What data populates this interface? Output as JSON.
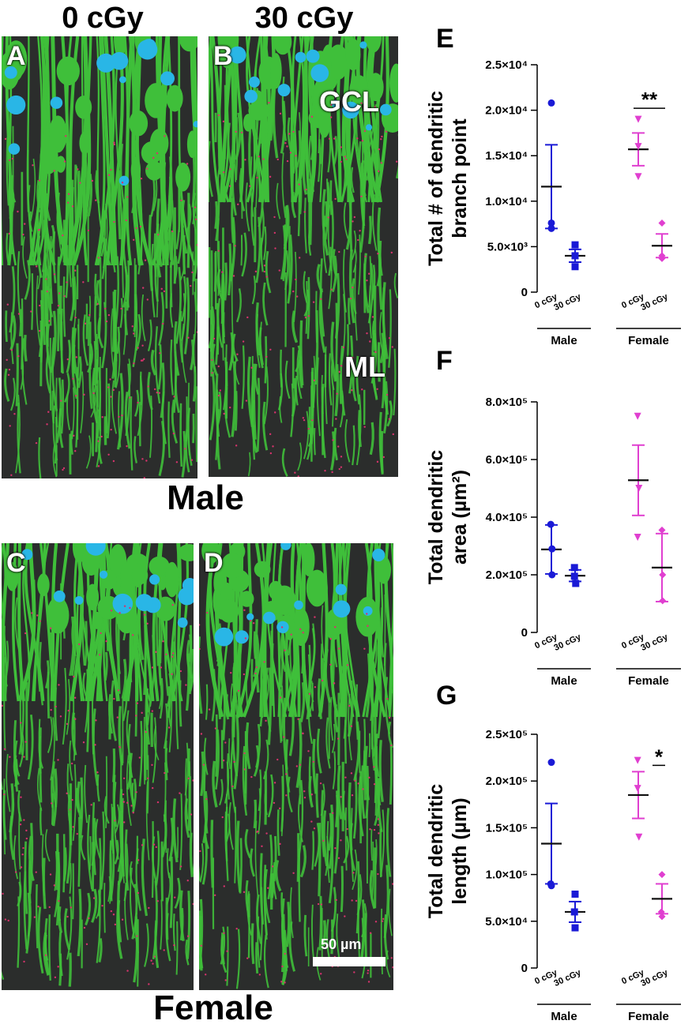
{
  "columns": [
    "0 cGy",
    "30 cGy"
  ],
  "rows": [
    "Male",
    "Female"
  ],
  "micrographs": [
    {
      "letter": "A",
      "labels": []
    },
    {
      "letter": "B",
      "labels": [
        "GCL",
        "ML"
      ]
    },
    {
      "letter": "C",
      "labels": []
    },
    {
      "letter": "D",
      "labels": []
    }
  ],
  "scale_bar": "50 µm",
  "colors": {
    "male": "#1a1ad6",
    "female": "#e03fd0",
    "dendrite": "#3fbf3a",
    "soma": "#29b6e6",
    "spine": "#d6336c",
    "background": "#2b2d2c"
  },
  "chart_data": [
    {
      "letter": "E",
      "type": "scatter",
      "ylabel": "Total # of dendritic branch point",
      "ylim": [
        0,
        25000
      ],
      "yticks": [
        0,
        5000,
        10000,
        15000,
        20000,
        25000
      ],
      "ytick_labels": [
        "0",
        "5.0×10³",
        "1.0×10⁴",
        "1.5×10⁴",
        "2.0×10⁴",
        "2.5×10⁴"
      ],
      "xtick_labels": [
        "0 cGy",
        "30 cGy",
        "0 cGy",
        "30 cGy"
      ],
      "groups": [
        "Male",
        "Female"
      ],
      "significance": [
        {
          "label": "**",
          "group": "Female"
        }
      ],
      "series": [
        {
          "group": "Male",
          "dose": "0 cGy",
          "marker": "circle",
          "points": [
            20800,
            7000,
            7600
          ],
          "mean": 11600,
          "sem": 4600
        },
        {
          "group": "Male",
          "dose": "30 cGy",
          "marker": "square",
          "points": [
            5200,
            4000,
            2800
          ],
          "mean": 4000,
          "sem": 700
        },
        {
          "group": "Female",
          "dose": "0 cGy",
          "marker": "triangle",
          "points": [
            19000,
            16000,
            12700
          ],
          "mean": 15700,
          "sem": 1800
        },
        {
          "group": "Female",
          "dose": "30 cGy",
          "marker": "diamond",
          "points": [
            7600,
            4000,
            3700
          ],
          "mean": 5100,
          "sem": 1300
        }
      ]
    },
    {
      "letter": "F",
      "type": "scatter",
      "ylabel": "Total dendritic area (µm²)",
      "ylim": [
        0,
        800000
      ],
      "yticks": [
        0,
        200000,
        400000,
        600000,
        800000
      ],
      "ytick_labels": [
        "0",
        "2.0×10⁵",
        "4.0×10⁵",
        "6.0×10⁵",
        "8.0×10⁵"
      ],
      "xtick_labels": [
        "0 cGy",
        "30 cGy",
        "0 cGy",
        "30 cGy"
      ],
      "groups": [
        "Male",
        "Female"
      ],
      "significance": [],
      "series": [
        {
          "group": "Male",
          "dose": "0 cGy",
          "marker": "circle",
          "points": [
            375000,
            290000,
            200000
          ],
          "mean": 288000,
          "sem": 85000
        },
        {
          "group": "Male",
          "dose": "30 cGy",
          "marker": "square",
          "points": [
            225000,
            195000,
            170000
          ],
          "mean": 197000,
          "sem": 20000
        },
        {
          "group": "Female",
          "dose": "0 cGy",
          "marker": "triangle",
          "points": [
            750000,
            500000,
            330000
          ],
          "mean": 528000,
          "sem": 122000
        },
        {
          "group": "Female",
          "dose": "30 cGy",
          "marker": "diamond",
          "points": [
            355000,
            200000,
            110000
          ],
          "mean": 225000,
          "sem": 118000
        }
      ]
    },
    {
      "letter": "G",
      "type": "scatter",
      "ylabel": "Total dendritic length (µm)",
      "ylim": [
        0,
        250000
      ],
      "yticks": [
        0,
        50000,
        100000,
        150000,
        200000,
        250000
      ],
      "ytick_labels": [
        "0",
        "5.0×10⁴",
        "1.0×10⁵",
        "1.5×10⁵",
        "2.0×10⁵",
        "2.5×10⁵"
      ],
      "xtick_labels": [
        "0 cGy",
        "30 cGy",
        "0 cGy",
        "30 cGy"
      ],
      "groups": [
        "Male",
        "Female"
      ],
      "significance": [
        {
          "label": "*",
          "group": "Female"
        }
      ],
      "series": [
        {
          "group": "Male",
          "dose": "0 cGy",
          "marker": "circle",
          "points": [
            220000,
            90000,
            88000
          ],
          "mean": 133000,
          "sem": 43000
        },
        {
          "group": "Male",
          "dose": "30 cGy",
          "marker": "square",
          "points": [
            79000,
            60000,
            43000
          ],
          "mean": 60000,
          "sem": 11000
        },
        {
          "group": "Female",
          "dose": "0 cGy",
          "marker": "triangle",
          "points": [
            222000,
            192000,
            140000
          ],
          "mean": 185000,
          "sem": 25000
        },
        {
          "group": "Female",
          "dose": "30 cGy",
          "marker": "diamond",
          "points": [
            100000,
            60000,
            55000
          ],
          "mean": 74000,
          "sem": 16000
        }
      ]
    }
  ]
}
